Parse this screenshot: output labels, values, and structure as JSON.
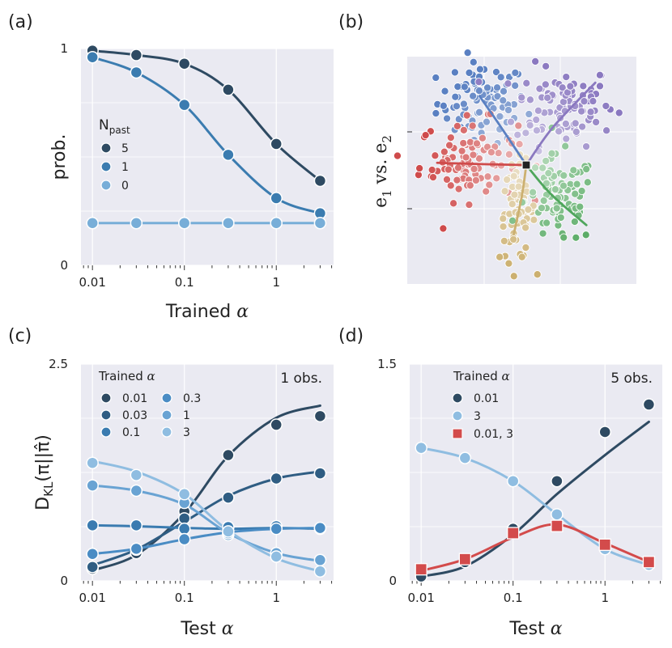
{
  "colors": {
    "panel_bg": "#eaeaf2",
    "grid": "#ffffff",
    "n5": "#2e4a62",
    "n1": "#3b7cb0",
    "n0": "#78aed8",
    "a001": "#2e4a62",
    "a003": "#2f5d83",
    "a01": "#3a7bb0",
    "a03": "#4a8cc4",
    "a1": "#69a3d3",
    "a3": "#8fbde1",
    "red": "#d34b4b",
    "cl_blue": "#5a80c2",
    "cl_purple": "#8a78c0",
    "cl_red": "#cf4b4b",
    "cl_yellow": "#ccb070",
    "cl_green": "#4fa65c"
  },
  "panels": {
    "a": {
      "letter": "(a)"
    },
    "b": {
      "letter": "(b)"
    },
    "c": {
      "letter": "(c)"
    },
    "d": {
      "letter": "(d)"
    }
  },
  "chart_data": [
    {
      "id": "a",
      "type": "line",
      "title": "",
      "xlabel": "Trained α",
      "ylabel": "prob.",
      "x_scale": "log",
      "xlim": [
        0.0075,
        4.2
      ],
      "ylim": [
        0,
        1
      ],
      "x_ticks": [
        0.01,
        0.1,
        1
      ],
      "x_tick_labels": [
        "0.01",
        "0.1",
        "1"
      ],
      "y_ticks": [
        0,
        1
      ],
      "y_tick_labels": [
        "0",
        "1"
      ],
      "legend": {
        "title_main": "N",
        "title_sub": "past",
        "position": "center-left"
      },
      "x": [
        0.01,
        0.03,
        0.1,
        0.3,
        1,
        3
      ],
      "series": [
        {
          "name": "5",
          "color_key": "n5",
          "values": [
            0.99,
            0.97,
            0.93,
            0.81,
            0.56,
            0.39
          ]
        },
        {
          "name": "1",
          "color_key": "n1",
          "values": [
            0.96,
            0.89,
            0.74,
            0.51,
            0.31,
            0.24
          ]
        },
        {
          "name": "0",
          "color_key": "n0",
          "values": [
            0.195,
            0.195,
            0.195,
            0.195,
            0.195,
            0.195
          ]
        }
      ]
    },
    {
      "id": "b",
      "type": "scatter",
      "title": "",
      "ylabel_main": "e",
      "ylabel_sub1": "1",
      "ylabel_mid": " vs. ",
      "ylabel_main2": "e",
      "ylabel_sub2": "2",
      "x_ticks": [],
      "y_ticks": [],
      "center": [
        0,
        0
      ],
      "clusters": [
        {
          "name": "blue",
          "color_key": "cl_blue",
          "mean": [
            -1.0,
            1.4
          ],
          "spread": [
            0.5,
            0.45
          ],
          "n": 90,
          "trend": [
            [
              0,
              0
            ],
            [
              -0.6,
              0.9
            ],
            [
              -1.05,
              1.55
            ]
          ]
        },
        {
          "name": "purple",
          "color_key": "cl_purple",
          "mean": [
            0.85,
            1.35
          ],
          "spread": [
            0.55,
            0.45
          ],
          "n": 100,
          "trend": [
            [
              0,
              0
            ],
            [
              0.6,
              0.85
            ],
            [
              1.55,
              1.85
            ]
          ]
        },
        {
          "name": "red",
          "color_key": "cl_red",
          "mean": [
            -1.3,
            0.1
          ],
          "spread": [
            0.55,
            0.45
          ],
          "n": 95,
          "trend": [
            [
              -2.0,
              0.05
            ],
            [
              -1.0,
              0.02
            ],
            [
              0,
              0
            ]
          ]
        },
        {
          "name": "yellow",
          "color_key": "cl_yellow",
          "mean": [
            -0.2,
            -1.05
          ],
          "spread": [
            0.2,
            0.55
          ],
          "n": 70,
          "trend": [
            [
              0,
              0
            ],
            [
              -0.1,
              -0.7
            ],
            [
              -0.28,
              -1.55
            ]
          ]
        },
        {
          "name": "green",
          "color_key": "cl_green",
          "mean": [
            0.75,
            -0.8
          ],
          "spread": [
            0.4,
            0.5
          ],
          "n": 85,
          "trend": [
            [
              0,
              0
            ],
            [
              0.55,
              -0.65
            ],
            [
              1.35,
              -1.35
            ]
          ]
        }
      ]
    },
    {
      "id": "c",
      "type": "line",
      "title": "",
      "annotation": "1 obs.",
      "xlabel": "Test α",
      "ylabel_main": "D",
      "ylabel_sub": "KL",
      "ylabel_rest": "(π||π̂)",
      "x_scale": "log",
      "xlim": [
        0.0075,
        4.2
      ],
      "ylim": [
        0,
        2.5
      ],
      "x_ticks": [
        0.01,
        0.1,
        1
      ],
      "x_tick_labels": [
        "0.01",
        "0.1",
        "1"
      ],
      "y_ticks": [
        0,
        2.5
      ],
      "y_tick_labels": [
        "0",
        "2.5"
      ],
      "legend": {
        "title": "Trained α",
        "position": "top-left",
        "columns": 2
      },
      "x": [
        0.01,
        0.03,
        0.1,
        0.3,
        1,
        3
      ],
      "series": [
        {
          "name": "0.01",
          "color_key": "a001",
          "values": [
            0.14,
            0.32,
            0.8,
            1.45,
            1.8,
            1.9
          ],
          "curve": [
            0.12,
            0.3,
            0.78,
            1.44,
            1.88,
            2.02
          ]
        },
        {
          "name": "0.03",
          "color_key": "a003",
          "values": [
            0.16,
            0.36,
            0.72,
            0.96,
            1.18,
            1.24
          ],
          "curve": [
            0.18,
            0.36,
            0.68,
            0.98,
            1.18,
            1.26
          ]
        },
        {
          "name": "0.1",
          "color_key": "a01",
          "values": [
            0.64,
            0.64,
            0.6,
            0.62,
            0.63,
            0.6
          ],
          "curve": [
            0.64,
            0.63,
            0.61,
            0.6,
            0.61,
            0.6
          ]
        },
        {
          "name": "0.3",
          "color_key": "a03",
          "values": [
            0.31,
            0.37,
            0.48,
            0.53,
            0.6,
            0.61
          ],
          "curve": [
            0.31,
            0.37,
            0.48,
            0.56,
            0.6,
            0.61
          ]
        },
        {
          "name": "1",
          "color_key": "a1",
          "values": [
            1.1,
            1.04,
            0.9,
            0.55,
            0.32,
            0.24
          ],
          "curve": [
            1.1,
            1.04,
            0.88,
            0.55,
            0.32,
            0.23
          ]
        },
        {
          "name": "3",
          "color_key": "a3",
          "values": [
            1.36,
            1.22,
            1.0,
            0.57,
            0.28,
            0.11
          ],
          "curve": [
            1.38,
            1.26,
            1.0,
            0.58,
            0.26,
            0.11
          ]
        }
      ]
    },
    {
      "id": "d",
      "type": "line",
      "title": "",
      "annotation": "5 obs.",
      "xlabel": "Test α",
      "ylabel": "",
      "x_scale": "log",
      "xlim": [
        0.0075,
        4.2
      ],
      "ylim": [
        0,
        1.5
      ],
      "x_ticks": [
        0.01,
        0.1,
        1
      ],
      "x_tick_labels": [
        "0.01",
        "0.1",
        "1"
      ],
      "y_ticks": [
        0,
        1.5
      ],
      "y_tick_labels": [
        "0",
        "1.5"
      ],
      "legend": {
        "title": "Trained α",
        "position": "top-left"
      },
      "x": [
        0.01,
        0.03,
        0.1,
        0.3,
        1,
        3
      ],
      "series": [
        {
          "name": "0.01",
          "color_key": "a001",
          "marker": "circle",
          "values": [
            0.03,
            0.13,
            0.36,
            0.69,
            1.03,
            1.22
          ],
          "curve": [
            0.03,
            0.1,
            0.32,
            0.6,
            0.87,
            1.1
          ]
        },
        {
          "name": "3",
          "color_key": "a3",
          "marker": "circle",
          "values": [
            0.92,
            0.85,
            0.69,
            0.46,
            0.22,
            0.11
          ],
          "curve": [
            0.92,
            0.85,
            0.69,
            0.46,
            0.22,
            0.11
          ]
        },
        {
          "name": "0.01, 3",
          "color_key": "red",
          "marker": "square",
          "values": [
            0.08,
            0.15,
            0.33,
            0.38,
            0.25,
            0.13
          ],
          "curve": [
            0.07,
            0.15,
            0.3,
            0.39,
            0.26,
            0.13
          ]
        }
      ]
    }
  ]
}
